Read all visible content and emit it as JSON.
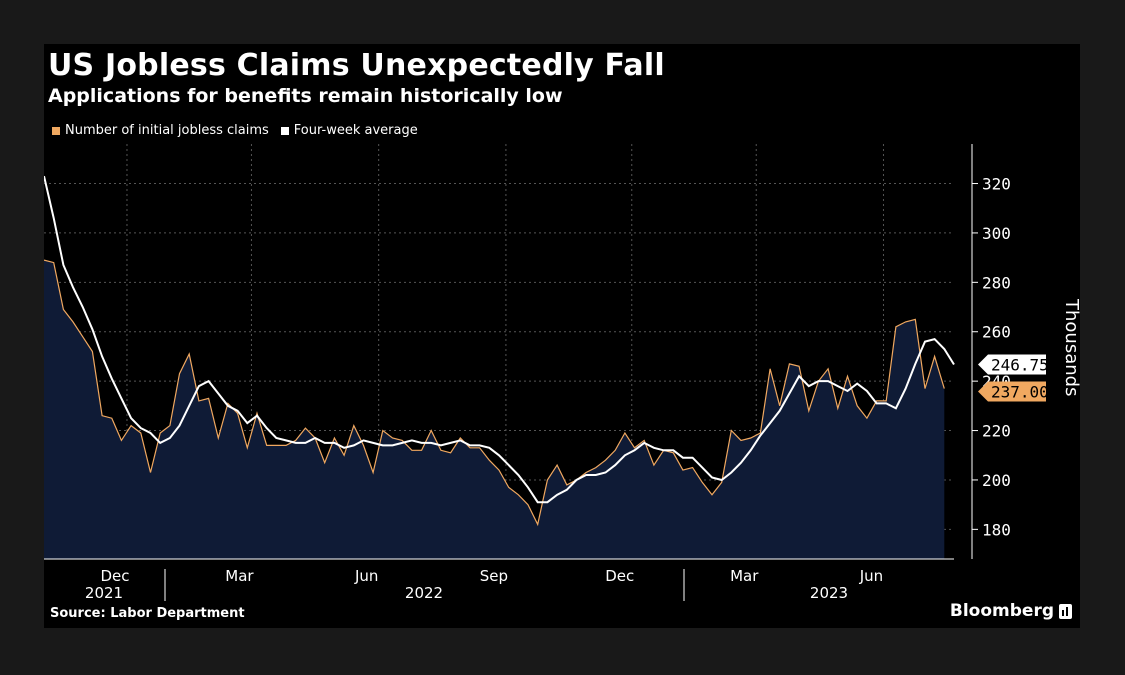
{
  "header": {
    "title": "US Jobless Claims Unexpectedly Fall",
    "subtitle": "Applications for benefits remain historically low"
  },
  "footer": {
    "source": "Source: Labor Department",
    "brand": "Bloomberg"
  },
  "colors": {
    "background": "#000000",
    "area_fill": "#0f1b36",
    "claims_line": "#f0a860",
    "average_line": "#ffffff",
    "grid": "#555555"
  },
  "icons": {
    "brand": "bloomberg-bars-icon"
  },
  "chart_data": {
    "type": "area",
    "ylabel": "Thousands",
    "ylim": [
      168,
      336
    ],
    "y_ticks": [
      "180",
      "200",
      "220",
      "240",
      "260",
      "280",
      "300",
      "320"
    ],
    "x_range": [
      "2021-10-02",
      "2023-07-22"
    ],
    "x_month_labels": [
      {
        "label": "Dec",
        "date": "2021-12-01"
      },
      {
        "label": "Mar",
        "date": "2022-03-01"
      },
      {
        "label": "Jun",
        "date": "2022-06-01"
      },
      {
        "label": "Sep",
        "date": "2022-09-01"
      },
      {
        "label": "Dec",
        "date": "2022-12-01"
      },
      {
        "label": "Mar",
        "date": "2023-03-01"
      },
      {
        "label": "Jun",
        "date": "2023-06-01"
      }
    ],
    "x_year_labels": [
      "2021",
      "2022",
      "2023"
    ],
    "grid": true,
    "legend": "top-left",
    "latest_labels": {
      "average": "246.750",
      "claims": "237.000"
    },
    "series": [
      {
        "name": "Number of initial jobless claims",
        "color": "#f0a860",
        "fill": true,
        "points": [
          [
            "2021-10-02",
            289
          ],
          [
            "2021-10-09",
            288
          ],
          [
            "2021-10-16",
            269
          ],
          [
            "2021-10-23",
            264
          ],
          [
            "2021-10-30",
            258
          ],
          [
            "2021-11-06",
            252
          ],
          [
            "2021-11-13",
            226
          ],
          [
            "2021-11-20",
            225
          ],
          [
            "2021-11-27",
            216
          ],
          [
            "2021-12-04",
            222
          ],
          [
            "2021-12-11",
            219
          ],
          [
            "2021-12-18",
            203
          ],
          [
            "2021-12-25",
            219
          ],
          [
            "2022-01-01",
            222
          ],
          [
            "2022-01-08",
            243
          ],
          [
            "2022-01-15",
            251
          ],
          [
            "2022-01-22",
            232
          ],
          [
            "2022-01-29",
            233
          ],
          [
            "2022-02-05",
            217
          ],
          [
            "2022-02-12",
            231
          ],
          [
            "2022-02-19",
            227
          ],
          [
            "2022-02-26",
            213
          ],
          [
            "2022-03-05",
            227
          ],
          [
            "2022-03-12",
            214
          ],
          [
            "2022-03-19",
            214
          ],
          [
            "2022-03-26",
            214
          ],
          [
            "2022-04-02",
            216
          ],
          [
            "2022-04-09",
            221
          ],
          [
            "2022-04-16",
            217
          ],
          [
            "2022-04-23",
            207
          ],
          [
            "2022-04-30",
            217
          ],
          [
            "2022-05-07",
            210
          ],
          [
            "2022-05-14",
            222
          ],
          [
            "2022-05-21",
            214
          ],
          [
            "2022-05-28",
            203
          ],
          [
            "2022-06-04",
            220
          ],
          [
            "2022-06-11",
            217
          ],
          [
            "2022-06-18",
            216
          ],
          [
            "2022-06-25",
            212
          ],
          [
            "2022-07-02",
            212
          ],
          [
            "2022-07-09",
            220
          ],
          [
            "2022-07-16",
            212
          ],
          [
            "2022-07-23",
            211
          ],
          [
            "2022-07-30",
            217
          ],
          [
            "2022-08-06",
            213
          ],
          [
            "2022-08-13",
            213
          ],
          [
            "2022-08-20",
            208
          ],
          [
            "2022-08-27",
            204
          ],
          [
            "2022-09-03",
            197
          ],
          [
            "2022-09-10",
            194
          ],
          [
            "2022-09-17",
            190
          ],
          [
            "2022-09-24",
            182
          ],
          [
            "2022-10-01",
            200
          ],
          [
            "2022-10-08",
            206
          ],
          [
            "2022-10-15",
            198
          ],
          [
            "2022-10-22",
            200
          ],
          [
            "2022-10-29",
            203
          ],
          [
            "2022-11-05",
            205
          ],
          [
            "2022-11-12",
            208
          ],
          [
            "2022-11-19",
            212
          ],
          [
            "2022-11-26",
            219
          ],
          [
            "2022-12-03",
            213
          ],
          [
            "2022-12-10",
            216
          ],
          [
            "2022-12-17",
            206
          ],
          [
            "2022-12-24",
            212
          ],
          [
            "2022-12-31",
            211
          ],
          [
            "2023-01-07",
            204
          ],
          [
            "2023-01-14",
            205
          ],
          [
            "2023-01-21",
            199
          ],
          [
            "2023-01-28",
            194
          ],
          [
            "2023-02-04",
            199
          ],
          [
            "2023-02-11",
            220
          ],
          [
            "2023-02-18",
            216
          ],
          [
            "2023-02-25",
            217
          ],
          [
            "2023-03-04",
            219
          ],
          [
            "2023-03-11",
            245
          ],
          [
            "2023-03-18",
            230
          ],
          [
            "2023-03-25",
            247
          ],
          [
            "2023-04-01",
            246
          ],
          [
            "2023-04-08",
            228
          ],
          [
            "2023-04-15",
            240
          ],
          [
            "2023-04-22",
            245
          ],
          [
            "2023-04-29",
            229
          ],
          [
            "2023-05-06",
            242
          ],
          [
            "2023-05-13",
            230
          ],
          [
            "2023-05-20",
            225
          ],
          [
            "2023-05-27",
            232
          ],
          [
            "2023-06-03",
            232
          ],
          [
            "2023-06-10",
            262
          ],
          [
            "2023-06-17",
            264
          ],
          [
            "2023-06-24",
            265
          ],
          [
            "2023-07-01",
            237
          ],
          [
            "2023-07-08",
            250
          ],
          [
            "2023-07-15",
            237
          ]
        ]
      },
      {
        "name": "Four-week average",
        "color": "#ffffff",
        "fill": false,
        "points": [
          [
            "2021-10-02",
            323
          ],
          [
            "2021-10-09",
            306
          ],
          [
            "2021-10-16",
            287
          ],
          [
            "2021-10-23",
            278
          ],
          [
            "2021-10-30",
            270
          ],
          [
            "2021-11-06",
            261
          ],
          [
            "2021-11-13",
            250
          ],
          [
            "2021-11-20",
            241
          ],
          [
            "2021-11-27",
            233
          ],
          [
            "2021-12-04",
            225
          ],
          [
            "2021-12-11",
            221
          ],
          [
            "2021-12-18",
            219
          ],
          [
            "2021-12-25",
            215
          ],
          [
            "2022-01-01",
            217
          ],
          [
            "2022-01-08",
            222
          ],
          [
            "2022-01-15",
            230
          ],
          [
            "2022-01-22",
            238
          ],
          [
            "2022-01-29",
            240
          ],
          [
            "2022-02-05",
            235
          ],
          [
            "2022-02-12",
            230
          ],
          [
            "2022-02-19",
            228
          ],
          [
            "2022-02-26",
            223
          ],
          [
            "2022-03-05",
            226
          ],
          [
            "2022-03-12",
            221
          ],
          [
            "2022-03-19",
            217
          ],
          [
            "2022-03-26",
            216
          ],
          [
            "2022-04-02",
            215
          ],
          [
            "2022-04-09",
            215
          ],
          [
            "2022-04-16",
            217
          ],
          [
            "2022-04-23",
            215
          ],
          [
            "2022-04-30",
            215
          ],
          [
            "2022-05-07",
            213
          ],
          [
            "2022-05-14",
            214
          ],
          [
            "2022-05-21",
            216
          ],
          [
            "2022-05-28",
            215
          ],
          [
            "2022-06-04",
            214
          ],
          [
            "2022-06-11",
            214
          ],
          [
            "2022-06-18",
            215
          ],
          [
            "2022-06-25",
            216
          ],
          [
            "2022-07-02",
            215
          ],
          [
            "2022-07-09",
            215
          ],
          [
            "2022-07-16",
            214
          ],
          [
            "2022-07-23",
            215
          ],
          [
            "2022-07-30",
            216
          ],
          [
            "2022-08-06",
            214
          ],
          [
            "2022-08-13",
            214
          ],
          [
            "2022-08-20",
            213
          ],
          [
            "2022-08-27",
            210
          ],
          [
            "2022-09-03",
            206
          ],
          [
            "2022-09-10",
            202
          ],
          [
            "2022-09-17",
            197
          ],
          [
            "2022-09-24",
            191
          ],
          [
            "2022-10-01",
            191
          ],
          [
            "2022-10-08",
            194
          ],
          [
            "2022-10-15",
            196
          ],
          [
            "2022-10-22",
            200
          ],
          [
            "2022-10-29",
            202
          ],
          [
            "2022-11-05",
            202
          ],
          [
            "2022-11-12",
            203
          ],
          [
            "2022-11-19",
            206
          ],
          [
            "2022-11-26",
            210
          ],
          [
            "2022-12-03",
            212
          ],
          [
            "2022-12-10",
            215
          ],
          [
            "2022-12-17",
            213
          ],
          [
            "2022-12-24",
            212
          ],
          [
            "2022-12-31",
            212
          ],
          [
            "2023-01-07",
            209
          ],
          [
            "2023-01-14",
            209
          ],
          [
            "2023-01-21",
            205
          ],
          [
            "2023-01-28",
            201
          ],
          [
            "2023-02-04",
            200
          ],
          [
            "2023-02-11",
            203
          ],
          [
            "2023-02-18",
            207
          ],
          [
            "2023-02-25",
            212
          ],
          [
            "2023-03-04",
            218
          ],
          [
            "2023-03-11",
            223
          ],
          [
            "2023-03-18",
            228
          ],
          [
            "2023-03-25",
            235
          ],
          [
            "2023-04-01",
            242
          ],
          [
            "2023-04-08",
            238
          ],
          [
            "2023-04-15",
            240
          ],
          [
            "2023-04-22",
            240
          ],
          [
            "2023-04-29",
            238
          ],
          [
            "2023-05-06",
            236
          ],
          [
            "2023-05-13",
            239
          ],
          [
            "2023-05-20",
            236
          ],
          [
            "2023-05-27",
            231
          ],
          [
            "2023-06-03",
            231
          ],
          [
            "2023-06-10",
            229
          ],
          [
            "2023-06-17",
            237
          ],
          [
            "2023-06-24",
            247
          ],
          [
            "2023-07-01",
            256
          ],
          [
            "2023-07-08",
            257
          ],
          [
            "2023-07-15",
            253
          ],
          [
            "2023-07-22",
            246.75
          ]
        ]
      }
    ]
  }
}
